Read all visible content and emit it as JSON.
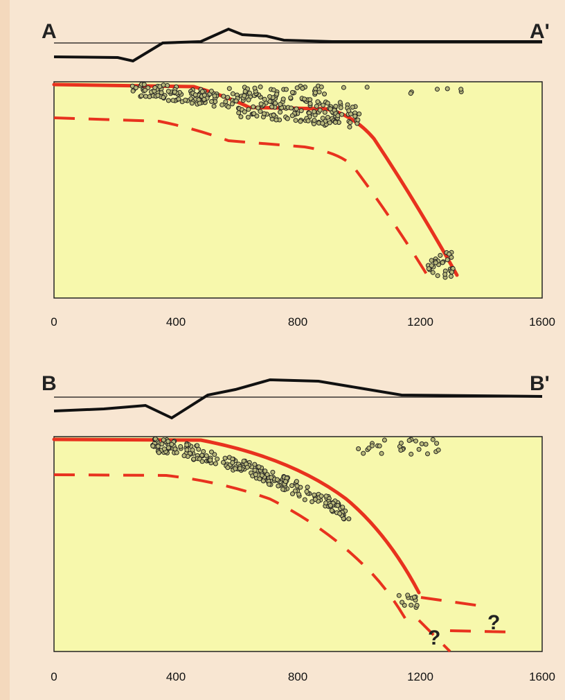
{
  "sections": [
    {
      "start_label": "A",
      "end_label": "A'",
      "x_axis": {
        "ticks": [
          "0",
          "400",
          "800",
          "1200",
          "1600"
        ]
      }
    },
    {
      "start_label": "B",
      "end_label": "B'",
      "x_axis": {
        "ticks": [
          "0",
          "400",
          "800",
          "1200",
          "1600"
        ]
      },
      "annotations": [
        "?",
        "?"
      ]
    }
  ]
}
